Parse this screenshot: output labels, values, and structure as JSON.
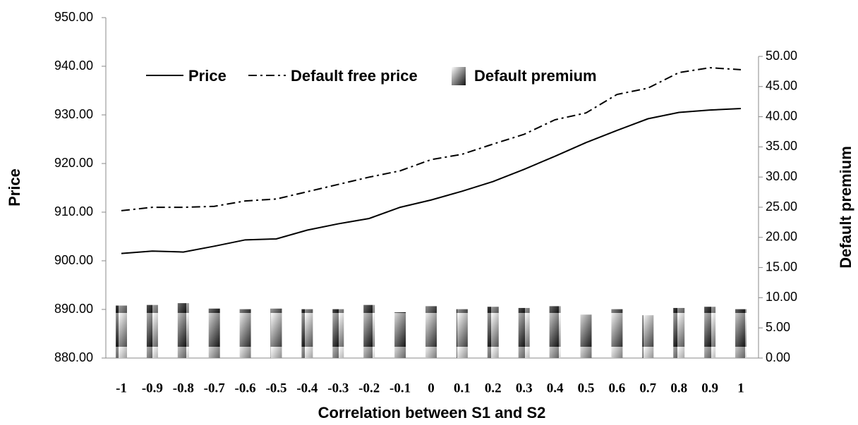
{
  "chart_data": {
    "type": "bar_line",
    "x_label": "Correlation between S1 and S2",
    "y_label": "Price",
    "y2_label": "Default premium",
    "categories": [
      "-1",
      "-0.9",
      "-0.8",
      "-0.7",
      "-0.6",
      "-0.5",
      "-0.4",
      "-0.3",
      "-0.2",
      "-0.1",
      "0",
      "0.1",
      "0.2",
      "0.3",
      "0.4",
      "0.5",
      "0.6",
      "0.7",
      "0.8",
      "0.9",
      "1"
    ],
    "series": [
      {
        "name": "Price",
        "type": "line",
        "color": "#000000",
        "linestyle": "solid",
        "values": [
          901.5,
          902,
          901.8,
          903,
          904.3,
          904.5,
          906.3,
          907.6,
          908.7,
          911,
          912.5,
          914.3,
          916.3,
          918.8,
          921.5,
          924.3,
          926.8,
          929.2,
          930.5,
          931,
          931.3
        ]
      },
      {
        "name": "Default free price",
        "type": "line",
        "color": "#000000",
        "linestyle": "dashdot",
        "values": [
          910.3,
          911,
          911,
          911.2,
          912.3,
          912.7,
          914.2,
          915.7,
          917.2,
          918.5,
          920.8,
          921.9,
          924,
          926,
          929,
          930.4,
          934.2,
          935.5,
          938.7,
          939.7,
          939.3
        ]
      },
      {
        "name": "Default premium",
        "type": "bar",
        "axis": "y2",
        "values": [
          8.7,
          8.8,
          9.1,
          8.2,
          8.1,
          8.2,
          8.1,
          8.1,
          8.8,
          7.6,
          8.6,
          8.1,
          8.5,
          8.3,
          8.6,
          7.2,
          8.1,
          7.1,
          8.3,
          8.5,
          8.1
        ]
      }
    ],
    "ylim": [
      880,
      950
    ],
    "yticks": [
      {
        "value": 880,
        "label": "880.00"
      },
      {
        "value": 890,
        "label": "890.00"
      },
      {
        "value": 900,
        "label": "900.00"
      },
      {
        "value": 910,
        "label": "910.00"
      },
      {
        "value": 920,
        "label": "920.00"
      },
      {
        "value": 930,
        "label": "930.00"
      },
      {
        "value": 940,
        "label": "940.00"
      },
      {
        "value": 950,
        "label": "950.00"
      }
    ],
    "y2lim": [
      0,
      50
    ],
    "y2ticks": [
      {
        "value": 0,
        "label": "0.00"
      },
      {
        "value": 5,
        "label": "5.00"
      },
      {
        "value": 10,
        "label": "10.00"
      },
      {
        "value": 15,
        "label": "15.00"
      },
      {
        "value": 20,
        "label": "20.00"
      },
      {
        "value": 25,
        "label": "25.00"
      },
      {
        "value": 30,
        "label": "30.00"
      },
      {
        "value": 35,
        "label": "35.00"
      },
      {
        "value": 40,
        "label": "40.00"
      },
      {
        "value": 45,
        "label": "45.00"
      },
      {
        "value": 50,
        "label": "50.00"
      }
    ],
    "legend": "top-left"
  }
}
